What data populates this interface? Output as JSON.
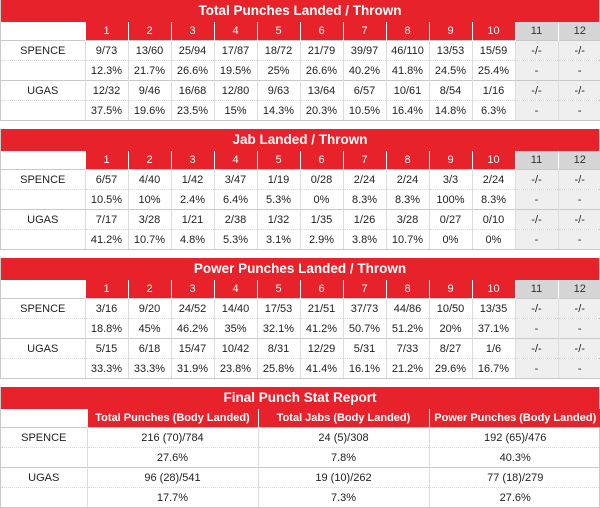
{
  "panels": [
    {
      "title": "Total Punches Landed / Thrown",
      "rounds": [
        "1",
        "2",
        "3",
        "4",
        "5",
        "6",
        "7",
        "8",
        "9",
        "10",
        "11",
        "12"
      ],
      "fighters": [
        {
          "name": "SPENCE",
          "landed": [
            "9/73",
            "13/60",
            "25/94",
            "17/87",
            "18/72",
            "21/79",
            "39/97",
            "46/110",
            "13/53",
            "15/59",
            "-/-",
            "-/-"
          ],
          "pct": [
            "12.3%",
            "21.7%",
            "26.6%",
            "19.5%",
            "25%",
            "26.6%",
            "40.2%",
            "41.8%",
            "24.5%",
            "25.4%",
            "-",
            "-"
          ]
        },
        {
          "name": "UGAS",
          "landed": [
            "12/32",
            "9/46",
            "16/68",
            "12/80",
            "9/63",
            "13/64",
            "6/57",
            "10/61",
            "8/54",
            "1/16",
            "-/-",
            "-/-"
          ],
          "pct": [
            "37.5%",
            "19.6%",
            "23.5%",
            "15%",
            "14.3%",
            "20.3%",
            "10.5%",
            "16.4%",
            "14.8%",
            "6.3%",
            "-",
            "-"
          ]
        }
      ]
    },
    {
      "title": "Jab Landed / Thrown",
      "rounds": [
        "1",
        "2",
        "3",
        "4",
        "5",
        "6",
        "7",
        "8",
        "9",
        "10",
        "11",
        "12"
      ],
      "fighters": [
        {
          "name": "SPENCE",
          "landed": [
            "6/57",
            "4/40",
            "1/42",
            "3/47",
            "1/19",
            "0/28",
            "2/24",
            "2/24",
            "3/3",
            "2/24",
            "-/-",
            "-/-"
          ],
          "pct": [
            "10.5%",
            "10%",
            "2.4%",
            "6.4%",
            "5.3%",
            "0%",
            "8.3%",
            "8.3%",
            "100%",
            "8.3%",
            "-",
            "-"
          ]
        },
        {
          "name": "UGAS",
          "landed": [
            "7/17",
            "3/28",
            "1/21",
            "2/38",
            "1/32",
            "1/35",
            "1/26",
            "3/28",
            "0/27",
            "0/10",
            "-/-",
            "-/-"
          ],
          "pct": [
            "41.2%",
            "10.7%",
            "4.8%",
            "5.3%",
            "3.1%",
            "2.9%",
            "3.8%",
            "10.7%",
            "0%",
            "0%",
            "-",
            "-"
          ]
        }
      ]
    },
    {
      "title": "Power Punches Landed / Thrown",
      "rounds": [
        "1",
        "2",
        "3",
        "4",
        "5",
        "6",
        "7",
        "8",
        "9",
        "10",
        "11",
        "12"
      ],
      "fighters": [
        {
          "name": "SPENCE",
          "landed": [
            "3/16",
            "9/20",
            "24/52",
            "14/40",
            "17/53",
            "21/51",
            "37/73",
            "44/86",
            "10/50",
            "13/35",
            "-/-",
            "-/-"
          ],
          "pct": [
            "18.8%",
            "45%",
            "46.2%",
            "35%",
            "32.1%",
            "41.2%",
            "50.7%",
            "51.2%",
            "20%",
            "37.1%",
            "-",
            "-"
          ]
        },
        {
          "name": "UGAS",
          "landed": [
            "5/15",
            "6/18",
            "15/47",
            "10/42",
            "8/31",
            "12/29",
            "5/31",
            "7/33",
            "8/27",
            "1/6",
            "-/-",
            "-/-"
          ],
          "pct": [
            "33.3%",
            "33.3%",
            "31.9%",
            "23.8%",
            "25.8%",
            "41.4%",
            "16.1%",
            "21.2%",
            "29.6%",
            "16.7%",
            "-",
            "-"
          ]
        }
      ]
    }
  ],
  "final": {
    "title": "Final Punch Stat Report",
    "columns": [
      "Total Punches (Body Landed)",
      "Total Jabs (Body Landed)",
      "Power Punches (Body Landed)"
    ],
    "fighters": [
      {
        "name": "SPENCE",
        "landed": [
          "216 (70)/784",
          "24 (5)/308",
          "192 (65)/476"
        ],
        "pct": [
          "27.6%",
          "7.8%",
          "40.3%"
        ]
      },
      {
        "name": "UGAS",
        "landed": [
          "96 (28)/541",
          "19 (10)/262",
          "77 (18)/279"
        ],
        "pct": [
          "17.7%",
          "7.3%",
          "27.6%"
        ]
      }
    ]
  },
  "colors": {
    "accent": "#e8222a",
    "grey_cell": "#efefef",
    "grey_header": "#d6d6d6"
  }
}
